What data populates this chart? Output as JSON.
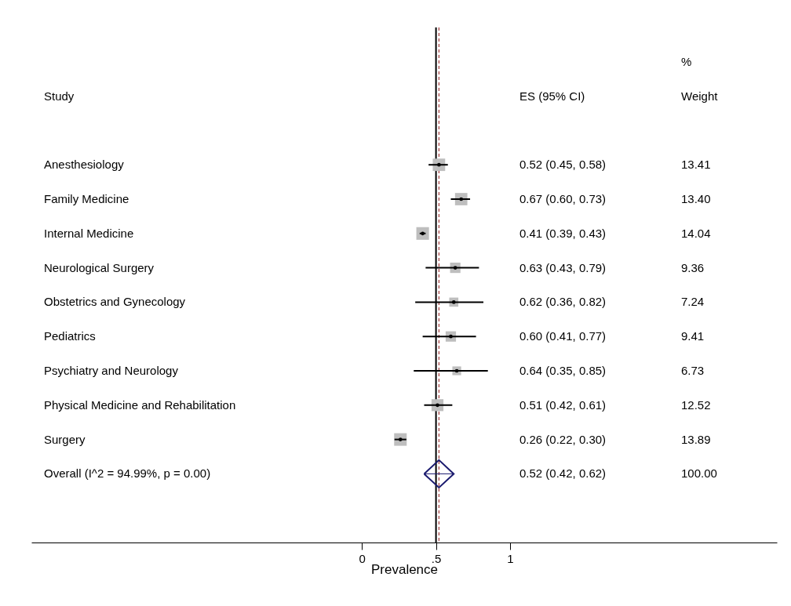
{
  "chart_data": {
    "type": "scatter",
    "orientation": "horizontal",
    "xlabel": "Prevalence",
    "annotations": [
      "Study",
      "ES (95% CI)",
      "%\nWeight",
      "0.52 (0.45, 0.58)",
      "0.67 (0.60, 0.73)",
      "0.41 (0.39, 0.43)",
      "0.63 (0.43, 0.79)",
      "0.62 (0.36, 0.82)",
      "0.60 (0.41, 0.77)",
      "0.64 (0.35, 0.85)",
      "0.51 (0.42, 0.61)",
      "0.26 (0.22, 0.30)",
      "0.52 (0.42, 0.62)",
      "13.41",
      "13.40",
      "14.04",
      "9.36",
      "7.24",
      "9.41",
      "6.73",
      "12.52",
      "13.89",
      "100.00"
    ],
    "categories": [
      "Anesthesiology",
      "Family Medicine",
      "Internal Medicine",
      "Neurological Surgery",
      "Obstetrics and Gynecology",
      "Pediatrics",
      "Psychiatry and Neurology",
      "Physical Medicine and Rehabilitation",
      "Surgery",
      "Overall  (I^2 = 94.99%, p = 0.00)"
    ],
    "series": [
      {
        "type": "scatter",
        "marker": "square",
        "color": "#bebebe",
        "values": [
          0.52,
          0.67,
          0.41,
          0.63,
          0.62,
          0.6,
          0.64,
          0.51,
          0.26,
          null
        ],
        "errors": [
          [
            0.45,
            0.58
          ],
          [
            0.6,
            0.73
          ],
          [
            0.39,
            0.43
          ],
          [
            0.43,
            0.79
          ],
          [
            0.36,
            0.82
          ],
          [
            0.41,
            0.77
          ],
          [
            0.35,
            0.85
          ],
          [
            0.42,
            0.61
          ],
          [
            0.22,
            0.3
          ],
          null
        ],
        "sizes": [
          0.96,
          0.95,
          1,
          0.67,
          0.52,
          0.67,
          0.48,
          0.89,
          0.99,
          null
        ]
      },
      {
        "type": "scatter",
        "marker": "diamond",
        "color": "#1a1a6e",
        "values": [
          null,
          null,
          null,
          null,
          null,
          null,
          null,
          null,
          null,
          0.52
        ],
        "errors": [
          null,
          null,
          null,
          null,
          null,
          null,
          null,
          null,
          null,
          [
            0.42,
            0.62
          ]
        ]
      }
    ],
    "xlim": [
      -2.23,
      2.8
    ],
    "xticks": [
      0,
      {
        "value": 0.5,
        "label": ".5"
      },
      1
    ],
    "ref_lines": [
      {
        "axis": "x",
        "value": 0.5,
        "color": "#000000"
      },
      {
        "axis": "x",
        "value": 0.52,
        "color": "#a03c3c",
        "line_style": "dashed"
      }
    ],
    "grid": false
  }
}
